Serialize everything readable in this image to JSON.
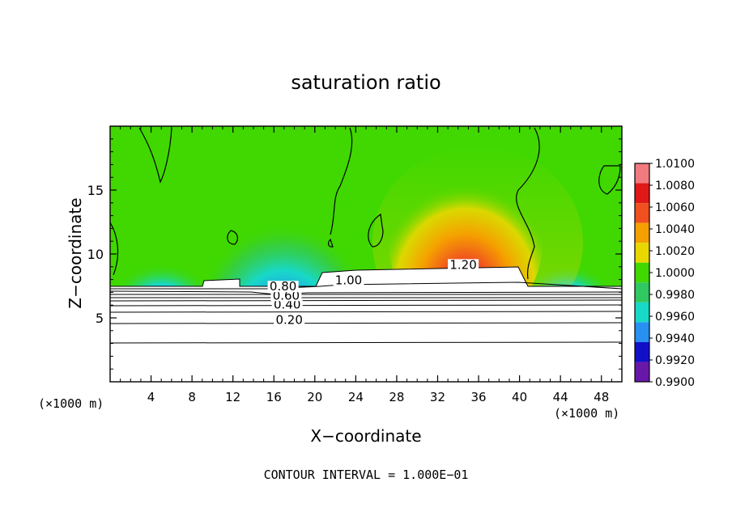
{
  "chart_data": {
    "type": "heatmap",
    "title": "saturation ratio",
    "xlabel": "X−coordinate",
    "ylabel": "Z−coordinate",
    "x_scale_note": "(×1000 m)",
    "x_ticks": [
      4,
      8,
      12,
      16,
      20,
      24,
      28,
      32,
      36,
      40,
      44,
      48
    ],
    "y_ticks": [
      5,
      10,
      15
    ],
    "xlim": [
      0,
      50
    ],
    "ylim": [
      0,
      20
    ],
    "colorbar": {
      "labels": [
        "1.0100",
        "1.0080",
        "1.0060",
        "1.0040",
        "1.0020",
        "1.0000",
        "0.9980",
        "0.9960",
        "0.9940",
        "0.9920",
        "0.9900"
      ],
      "colors": [
        "#f07a80",
        "#e01818",
        "#f05020",
        "#f5a000",
        "#e8d800",
        "#40d800",
        "#30c860",
        "#18d8c8",
        "#2890f0",
        "#1010c8",
        "#6818a8"
      ]
    },
    "contour_labels": [
      {
        "text": "0.20",
        "x": 17.5,
        "z": 4.6
      },
      {
        "text": "0.40",
        "x": 17.3,
        "z": 5.8
      },
      {
        "text": "0.60",
        "x": 17.2,
        "z": 6.5
      },
      {
        "text": "0.80",
        "x": 16.9,
        "z": 7.2
      },
      {
        "text": "1.00",
        "x": 23.3,
        "z": 7.7
      },
      {
        "text": "1.20",
        "x": 34.5,
        "z": 8.9
      }
    ],
    "contour_interval": "CONTOUR INTERVAL = 1.000E−01"
  }
}
